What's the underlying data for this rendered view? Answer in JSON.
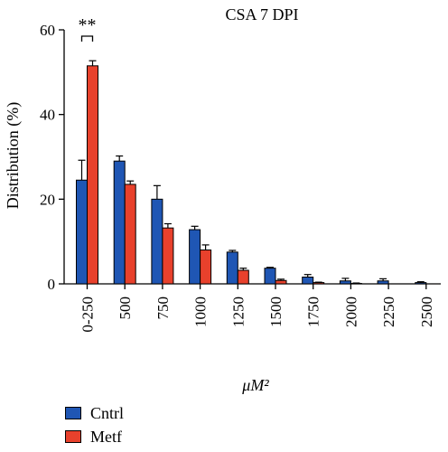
{
  "chart_data": {
    "type": "bar",
    "title": "CSA 7 DPI",
    "xlabel": "μM²",
    "ylabel": "Distribution (%)",
    "ylim": [
      0,
      60
    ],
    "yticks": [
      "0",
      "20",
      "40",
      "60"
    ],
    "categories": [
      "0-250",
      "500",
      "750",
      "1000",
      "1250",
      "1500",
      "1750",
      "2000",
      "2250",
      "2500"
    ],
    "series": [
      {
        "name": "Cntrl",
        "color": "#1f56b4",
        "values": [
          24.5,
          29.0,
          20.0,
          12.8,
          7.5,
          3.7,
          1.6,
          0.7,
          0.7,
          0.3
        ],
        "errors": [
          4.7,
          1.2,
          3.2,
          0.8,
          0.4,
          0.2,
          0.6,
          0.6,
          0.5,
          0.2
        ]
      },
      {
        "name": "Metf",
        "color": "#e8412c",
        "values": [
          51.5,
          23.5,
          13.2,
          8.0,
          3.2,
          0.8,
          0.3,
          0.1,
          0.0,
          0.0
        ],
        "errors": [
          1.2,
          0.8,
          1.0,
          1.2,
          0.5,
          0.3,
          0.1,
          0.1,
          0.0,
          0.0
        ]
      }
    ],
    "annotations": [
      {
        "text": "**",
        "category": "0-250"
      }
    ],
    "grid": false,
    "legend_position": "bottom-left"
  },
  "legend": {
    "items": [
      {
        "label": "Cntrl",
        "color": "#1f56b4"
      },
      {
        "label": "Metf",
        "color": "#e8412c"
      }
    ]
  }
}
